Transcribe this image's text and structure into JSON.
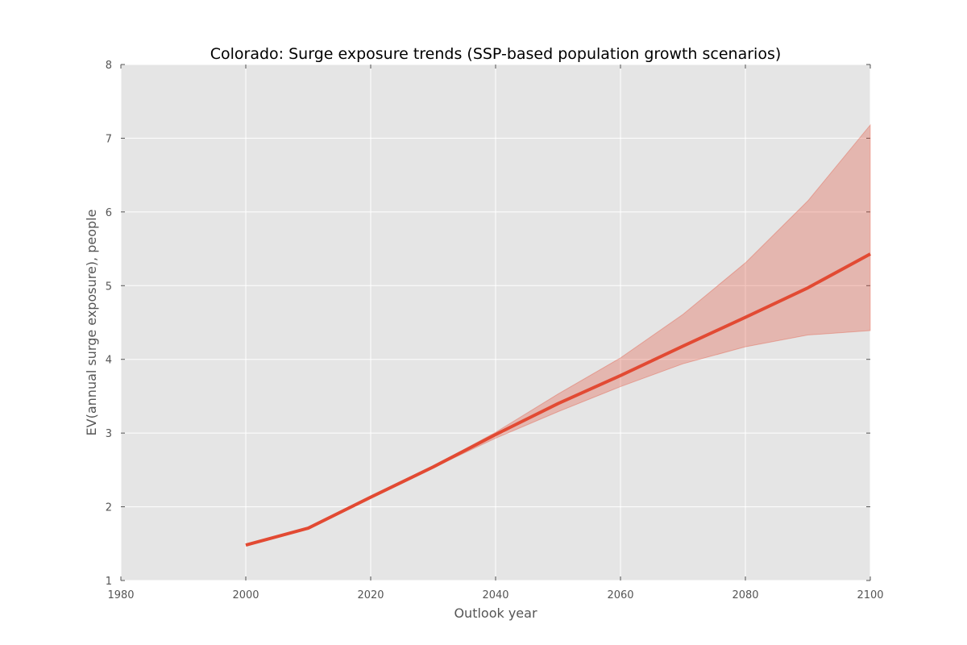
{
  "chart_data": {
    "type": "line",
    "title": "Colorado: Surge exposure trends (SSP-based population growth scenarios)",
    "xlabel": "Outlook year",
    "ylabel": "EV(annual surge exposure), people",
    "xlim": [
      1980,
      2100
    ],
    "ylim": [
      1,
      8
    ],
    "xticks": [
      1980,
      2000,
      2020,
      2040,
      2060,
      2080,
      2100
    ],
    "yticks": [
      1,
      2,
      3,
      4,
      5,
      6,
      7,
      8
    ],
    "grid": true,
    "legend": "none",
    "series": [
      {
        "x": [
          2000,
          2010,
          2020,
          2030,
          2040,
          2050,
          2060,
          2070,
          2080,
          2090,
          2100
        ],
        "values": [
          1.48,
          1.71,
          2.13,
          2.54,
          2.98,
          3.4,
          3.78,
          4.18,
          4.57,
          4.97,
          5.43
        ],
        "lower": [
          1.48,
          1.71,
          2.13,
          2.53,
          2.93,
          3.29,
          3.63,
          3.94,
          4.17,
          4.33,
          4.39
        ],
        "upper": [
          1.48,
          1.71,
          2.13,
          2.55,
          3.01,
          3.53,
          4.02,
          4.61,
          5.31,
          6.15,
          7.18
        ]
      }
    ],
    "colors": {
      "line": "#E24A33",
      "band": "#E24A33",
      "plot_background": "#E5E5E5",
      "grid": "#FFFFFF",
      "tick_text": "#555555"
    }
  }
}
